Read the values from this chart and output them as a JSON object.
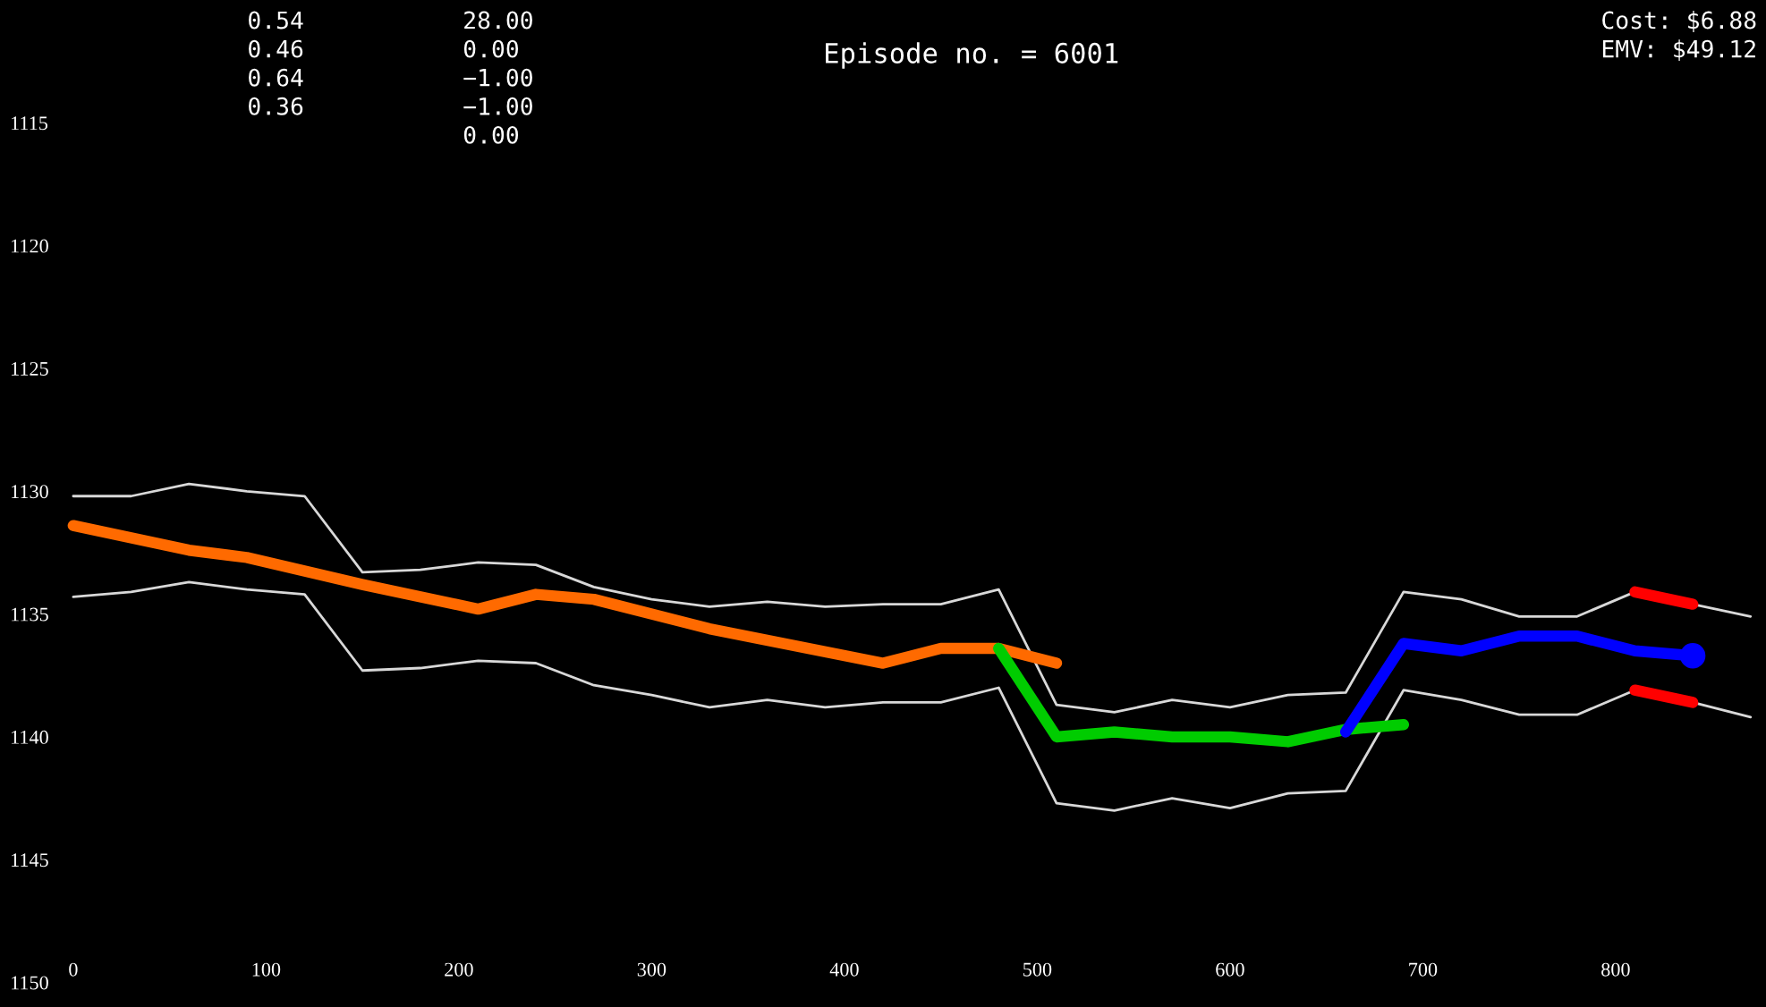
{
  "chart_data": {
    "type": "line",
    "title": "Episode no. = 6001",
    "annotations": [
      "0.54",
      "0.46",
      "0.64",
      "0.36",
      "28.00",
      "0.00",
      "−1.00",
      "−1.00",
      "0.00",
      "Cost: $6.88",
      "EMV: $49.12"
    ],
    "xlim": [
      -38,
      878
    ],
    "ylim": [
      1151,
      1110
    ],
    "xticks": [
      0,
      100,
      200,
      300,
      400,
      500,
      600,
      700,
      800
    ],
    "yticks": [
      1115,
      1120,
      1125,
      1130,
      1135,
      1140,
      1145,
      1150
    ],
    "grid": false,
    "legend": false,
    "line_style": "solid",
    "series": [
      {
        "color": "#d8d8d8",
        "x": [
          0,
          30,
          60,
          90,
          120,
          150,
          180,
          210,
          240,
          270,
          300,
          330,
          360,
          390,
          420,
          450,
          480,
          510,
          540,
          570,
          600,
          630,
          660,
          690,
          720,
          750,
          780,
          810,
          840,
          870
        ],
        "values": [
          1130.2,
          1130.2,
          1129.7,
          1130.0,
          1130.2,
          1133.3,
          1133.2,
          1132.9,
          1133.0,
          1133.9,
          1134.4,
          1134.7,
          1134.5,
          1134.7,
          1134.6,
          1134.6,
          1134.0,
          1138.7,
          1139.0,
          1138.5,
          1138.8,
          1138.3,
          1138.2,
          1134.1,
          1134.4,
          1135.1,
          1135.1,
          1134.1,
          1134.6,
          1135.1
        ]
      },
      {
        "color": "#d8d8d8",
        "x": [
          0,
          30,
          60,
          90,
          120,
          150,
          180,
          210,
          240,
          270,
          300,
          330,
          360,
          390,
          420,
          450,
          480,
          510,
          540,
          570,
          600,
          630,
          660,
          690,
          720,
          750,
          780,
          810,
          840,
          870
        ],
        "values": [
          1134.3,
          1134.1,
          1133.7,
          1134.0,
          1134.2,
          1137.3,
          1137.2,
          1136.9,
          1137.0,
          1137.9,
          1138.3,
          1138.8,
          1138.5,
          1138.8,
          1138.6,
          1138.6,
          1138.0,
          1142.7,
          1143.0,
          1142.5,
          1142.9,
          1142.3,
          1142.2,
          1138.1,
          1138.5,
          1139.1,
          1139.1,
          1138.1,
          1138.6,
          1139.2
        ]
      },
      {
        "color": "#ff6a00",
        "x": [
          0,
          60,
          90,
          150,
          210,
          240,
          270,
          330,
          420,
          450,
          480,
          510
        ],
        "values": [
          1131.4,
          1132.4,
          1132.7,
          1133.8,
          1134.8,
          1134.2,
          1134.4,
          1135.6,
          1137.0,
          1136.4,
          1136.4,
          1137.0
        ]
      },
      {
        "color": "#00cc00",
        "x": [
          480,
          510,
          540,
          570,
          600,
          630,
          660,
          690
        ],
        "values": [
          1136.4,
          1140.0,
          1139.8,
          1140.0,
          1140.0,
          1140.2,
          1139.7,
          1139.5
        ]
      },
      {
        "color": "#0000ff",
        "x": [
          660,
          690,
          720,
          750,
          780,
          810,
          840
        ],
        "values": [
          1139.8,
          1136.2,
          1136.5,
          1135.9,
          1135.9,
          1136.5,
          1136.7
        ]
      },
      {
        "type": "scatter",
        "marker": "circle",
        "color": "#0000ff",
        "x": [
          840
        ],
        "values": [
          1136.7
        ]
      },
      {
        "color": "#ff0000",
        "x": [
          810,
          840
        ],
        "values": [
          1134.1,
          1134.6
        ]
      },
      {
        "color": "#ff0000",
        "x": [
          810,
          840
        ],
        "values": [
          1138.1,
          1138.6
        ]
      }
    ]
  }
}
